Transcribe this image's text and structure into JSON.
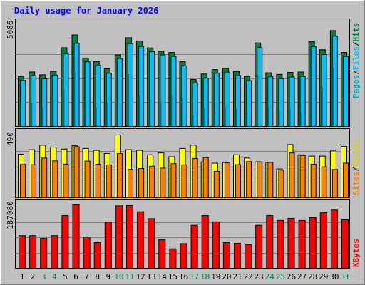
{
  "title": "Daily usage for January 2026",
  "colors": {
    "background": "#c0c0c0",
    "title": "#0000ff",
    "hits": "#008040",
    "files": "#00c0ff",
    "pages": "#00a8c8",
    "visits": "#ffff00",
    "sites": "#ff8000",
    "kbytes": "#ff0000",
    "weekend_day": "#00805c"
  },
  "chart_data": [
    {
      "type": "bar",
      "name": "hits-files-pages",
      "ymax_label": "5086",
      "ylim": [
        0,
        5086
      ],
      "legend": [
        "Pages",
        "Files",
        "Hits"
      ],
      "categories": [
        "1",
        "2",
        "3",
        "4",
        "5",
        "6",
        "7",
        "8",
        "9",
        "10",
        "11",
        "12",
        "13",
        "14",
        "15",
        "16",
        "17",
        "18",
        "19",
        "20",
        "21",
        "22",
        "23",
        "24",
        "25",
        "26",
        "27",
        "28",
        "29",
        "30",
        "31"
      ],
      "series": [
        {
          "name": "Hits",
          "values": [
            2520,
            2740,
            2600,
            2780,
            3960,
            4600,
            3440,
            3260,
            2900,
            3600,
            4460,
            4300,
            3950,
            3780,
            3720,
            3260,
            2360,
            2640,
            2860,
            2920,
            2770,
            2520,
            4200,
            2700,
            2620,
            2720,
            2740,
            4260,
            3860,
            4820,
            3720
          ]
        },
        {
          "name": "Files",
          "values": [
            2320,
            2560,
            2400,
            2580,
            3650,
            4180,
            3250,
            3070,
            2680,
            3420,
            4160,
            4010,
            3760,
            3600,
            3520,
            3050,
            2200,
            2440,
            2680,
            2730,
            2560,
            2300,
            3960,
            2500,
            2410,
            2490,
            2510,
            4010,
            3620,
            4540,
            3520
          ]
        },
        {
          "name": "Pages",
          "values": [
            1150,
            1200,
            950,
            1350,
            1850,
            2700,
            1050,
            950,
            1200,
            1150,
            2600,
            1550,
            1350,
            1250,
            1550,
            1400,
            550,
            900,
            700,
            1000,
            850,
            650,
            2550,
            950,
            750,
            850,
            700,
            2950,
            1950,
            2950,
            1450
          ]
        }
      ]
    },
    {
      "type": "bar",
      "name": "visits-sites",
      "ymax_label": "490",
      "ylim": [
        0,
        490
      ],
      "legend": [
        "Sites",
        "Visits"
      ],
      "categories": [
        "1",
        "2",
        "3",
        "4",
        "5",
        "6",
        "7",
        "8",
        "9",
        "10",
        "11",
        "12",
        "13",
        "14",
        "15",
        "16",
        "17",
        "18",
        "19",
        "20",
        "21",
        "22",
        "23",
        "24",
        "25",
        "26",
        "27",
        "28",
        "29",
        "30",
        "31"
      ],
      "series": [
        {
          "name": "Visits",
          "values": [
            340,
            375,
            410,
            395,
            380,
            405,
            385,
            370,
            345,
            490,
            375,
            370,
            335,
            350,
            320,
            385,
            410,
            280,
            270,
            275,
            335,
            310,
            280,
            275,
            225,
            415,
            335,
            325,
            325,
            365,
            400
          ]
        },
        {
          "name": "Sites",
          "values": [
            260,
            258,
            310,
            288,
            262,
            398,
            286,
            262,
            256,
            345,
            222,
            228,
            246,
            232,
            266,
            257,
            306,
            314,
            206,
            272,
            258,
            282,
            280,
            276,
            216,
            350,
            330,
            262,
            241,
            221,
            270
          ]
        }
      ]
    },
    {
      "type": "bar",
      "name": "kbytes",
      "ymax_label": "187080",
      "ylim": [
        0,
        187080
      ],
      "legend": [
        "KBytes"
      ],
      "categories": [
        "1",
        "2",
        "3",
        "4",
        "5",
        "6",
        "7",
        "8",
        "9",
        "10",
        "11",
        "12",
        "13",
        "14",
        "15",
        "16",
        "17",
        "18",
        "19",
        "20",
        "21",
        "22",
        "23",
        "24",
        "25",
        "26",
        "27",
        "28",
        "29",
        "30",
        "31"
      ],
      "series": [
        {
          "name": "KBytes",
          "values": [
            94000,
            94000,
            86000,
            94000,
            152000,
            183000,
            90000,
            74000,
            133000,
            180000,
            181000,
            163000,
            143000,
            82000,
            56000,
            71000,
            124000,
            152000,
            134000,
            74000,
            72000,
            68000,
            124000,
            152000,
            138000,
            144000,
            138000,
            146000,
            160000,
            168000,
            140000
          ]
        }
      ]
    }
  ],
  "days": [
    {
      "label": "1",
      "weekend": false
    },
    {
      "label": "2",
      "weekend": false
    },
    {
      "label": "3",
      "weekend": true
    },
    {
      "label": "4",
      "weekend": true
    },
    {
      "label": "5",
      "weekend": false
    },
    {
      "label": "6",
      "weekend": false
    },
    {
      "label": "7",
      "weekend": false
    },
    {
      "label": "8",
      "weekend": false
    },
    {
      "label": "9",
      "weekend": false
    },
    {
      "label": "10",
      "weekend": true
    },
    {
      "label": "11",
      "weekend": true
    },
    {
      "label": "12",
      "weekend": false
    },
    {
      "label": "13",
      "weekend": false
    },
    {
      "label": "14",
      "weekend": false
    },
    {
      "label": "15",
      "weekend": false
    },
    {
      "label": "16",
      "weekend": false
    },
    {
      "label": "17",
      "weekend": true
    },
    {
      "label": "18",
      "weekend": true
    },
    {
      "label": "19",
      "weekend": false
    },
    {
      "label": "20",
      "weekend": false
    },
    {
      "label": "21",
      "weekend": false
    },
    {
      "label": "22",
      "weekend": false
    },
    {
      "label": "23",
      "weekend": false
    },
    {
      "label": "24",
      "weekend": true
    },
    {
      "label": "25",
      "weekend": true
    },
    {
      "label": "26",
      "weekend": false
    },
    {
      "label": "27",
      "weekend": false
    },
    {
      "label": "28",
      "weekend": false
    },
    {
      "label": "29",
      "weekend": false
    },
    {
      "label": "30",
      "weekend": false
    },
    {
      "label": "31",
      "weekend": true
    }
  ]
}
